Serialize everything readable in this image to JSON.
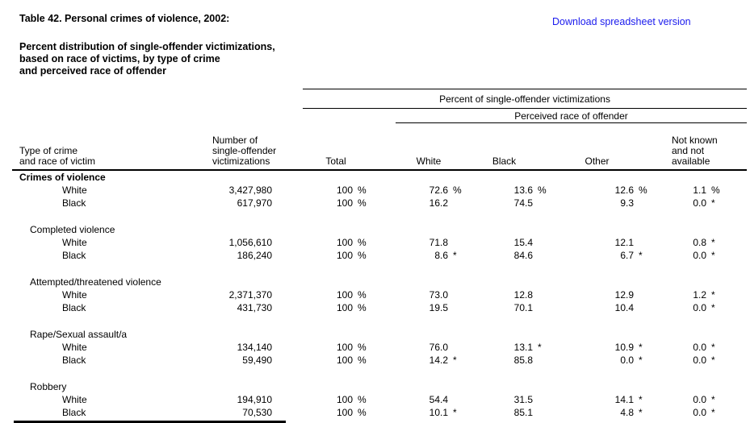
{
  "header": {
    "title": "Table 42. Personal crimes of violence, 2002:",
    "subtitle_lines": [
      "Percent distribution of single-offender victimizations,",
      "based on race of victims, by type of crime",
      "and perceived race of offender"
    ],
    "download_link_label": "Download spreadsheet version",
    "link_color": "#1a1aee"
  },
  "table": {
    "span_header_percent": "Percent of single-offender victimizations",
    "span_header_race": "Perceived race of offender",
    "col_headers": {
      "crime": [
        "Type of crime",
        "and race of victim"
      ],
      "number": [
        "Number of",
        "single-offender",
        "victimizations"
      ],
      "total": "Total",
      "white": "White",
      "black": "Black",
      "other": "Other",
      "notknown": [
        "Not known",
        "and not",
        "available"
      ]
    },
    "footnote_marker": "*",
    "rows": [
      {
        "type": "group",
        "label": "Crimes of violence",
        "indent": 0,
        "bold": true
      },
      {
        "type": "data",
        "label": "White",
        "indent": 2,
        "number": "3,427,980",
        "cells": [
          {
            "v": "100",
            "s": "%"
          },
          {
            "v": "72.6",
            "s": "%"
          },
          {
            "v": "13.6",
            "s": "%"
          },
          {
            "v": "12.6",
            "s": "%"
          },
          {
            "v": "1.1",
            "s": "%"
          }
        ]
      },
      {
        "type": "data",
        "label": "Black",
        "indent": 2,
        "number": "617,970",
        "cells": [
          {
            "v": "100",
            "s": "%"
          },
          {
            "v": "16.2",
            "s": ""
          },
          {
            "v": "74.5",
            "s": ""
          },
          {
            "v": "9.3",
            "s": ""
          },
          {
            "v": "0.0",
            "s": "*"
          }
        ]
      },
      {
        "type": "spacer"
      },
      {
        "type": "group",
        "label": "Completed violence",
        "indent": 1,
        "bold": false
      },
      {
        "type": "data",
        "label": "White",
        "indent": 2,
        "number": "1,056,610",
        "cells": [
          {
            "v": "100",
            "s": "%"
          },
          {
            "v": "71.8",
            "s": ""
          },
          {
            "v": "15.4",
            "s": ""
          },
          {
            "v": "12.1",
            "s": ""
          },
          {
            "v": "0.8",
            "s": "*"
          }
        ]
      },
      {
        "type": "data",
        "label": "Black",
        "indent": 2,
        "number": "186,240",
        "cells": [
          {
            "v": "100",
            "s": "%"
          },
          {
            "v": "8.6",
            "s": "*"
          },
          {
            "v": "84.6",
            "s": ""
          },
          {
            "v": "6.7",
            "s": "*"
          },
          {
            "v": "0.0",
            "s": "*"
          }
        ]
      },
      {
        "type": "spacer"
      },
      {
        "type": "group",
        "label": "Attempted/threatened violence",
        "indent": 1,
        "bold": false
      },
      {
        "type": "data",
        "label": "White",
        "indent": 2,
        "number": "2,371,370",
        "cells": [
          {
            "v": "100",
            "s": "%"
          },
          {
            "v": "73.0",
            "s": ""
          },
          {
            "v": "12.8",
            "s": ""
          },
          {
            "v": "12.9",
            "s": ""
          },
          {
            "v": "1.2",
            "s": "*"
          }
        ]
      },
      {
        "type": "data",
        "label": "Black",
        "indent": 2,
        "number": "431,730",
        "cells": [
          {
            "v": "100",
            "s": "%"
          },
          {
            "v": "19.5",
            "s": ""
          },
          {
            "v": "70.1",
            "s": ""
          },
          {
            "v": "10.4",
            "s": ""
          },
          {
            "v": "0.0",
            "s": "*"
          }
        ]
      },
      {
        "type": "spacer"
      },
      {
        "type": "group",
        "label": "Rape/Sexual assault/a",
        "indent": 1,
        "bold": false
      },
      {
        "type": "data",
        "label": "White",
        "indent": 2,
        "number": "134,140",
        "cells": [
          {
            "v": "100",
            "s": "%"
          },
          {
            "v": "76.0",
            "s": ""
          },
          {
            "v": "13.1",
            "s": "*"
          },
          {
            "v": "10.9",
            "s": "*"
          },
          {
            "v": "0.0",
            "s": "*"
          }
        ]
      },
      {
        "type": "data",
        "label": "Black",
        "indent": 2,
        "number": "59,490",
        "cells": [
          {
            "v": "100",
            "s": "%"
          },
          {
            "v": "14.2",
            "s": "*"
          },
          {
            "v": "85.8",
            "s": ""
          },
          {
            "v": "0.0",
            "s": "*"
          },
          {
            "v": "0.0",
            "s": "*"
          }
        ]
      },
      {
        "type": "spacer"
      },
      {
        "type": "group",
        "label": "Robbery",
        "indent": 1,
        "bold": false
      },
      {
        "type": "data",
        "label": "White",
        "indent": 2,
        "number": "194,910",
        "cells": [
          {
            "v": "100",
            "s": "%"
          },
          {
            "v": "54.4",
            "s": ""
          },
          {
            "v": "31.5",
            "s": ""
          },
          {
            "v": "14.1",
            "s": "*"
          },
          {
            "v": "0.0",
            "s": "*"
          }
        ]
      },
      {
        "type": "data",
        "label": "Black",
        "indent": 2,
        "number": "70,530",
        "cells": [
          {
            "v": "100",
            "s": "%"
          },
          {
            "v": "10.1",
            "s": "*"
          },
          {
            "v": "85.1",
            "s": ""
          },
          {
            "v": "4.8",
            "s": "*"
          },
          {
            "v": "0.0",
            "s": "*"
          }
        ]
      }
    ]
  }
}
